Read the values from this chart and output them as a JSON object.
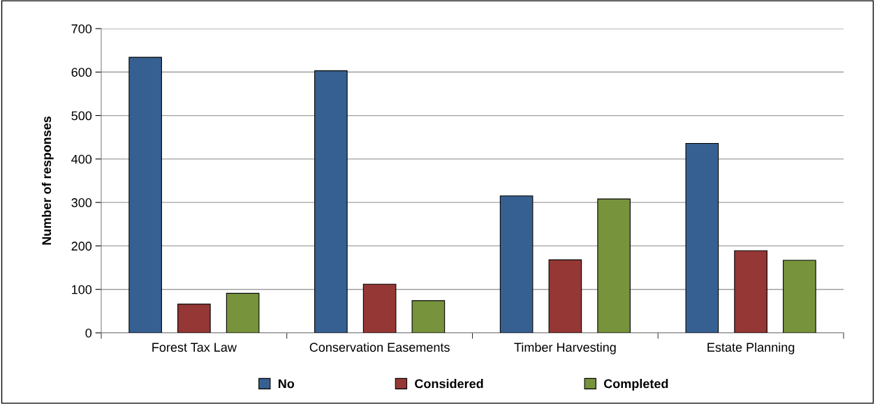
{
  "chart_data": {
    "type": "bar",
    "ylabel": "Number of responses",
    "categories": [
      "Forest Tax Law",
      "Conservation Easements",
      "Timber Harvesting",
      "Estate Planning"
    ],
    "series": [
      {
        "name": "No",
        "color": "#366092",
        "values": [
          634,
          603,
          315,
          436
        ]
      },
      {
        "name": "Considered",
        "color": "#953735",
        "values": [
          66,
          112,
          168,
          189
        ]
      },
      {
        "name": "Completed",
        "color": "#77933c",
        "values": [
          91,
          74,
          308,
          167
        ]
      }
    ],
    "ylim": [
      0,
      700
    ],
    "yticks": [
      0,
      100,
      200,
      300,
      400,
      500,
      600,
      700
    ],
    "grid": "y",
    "legend": "bottom"
  }
}
